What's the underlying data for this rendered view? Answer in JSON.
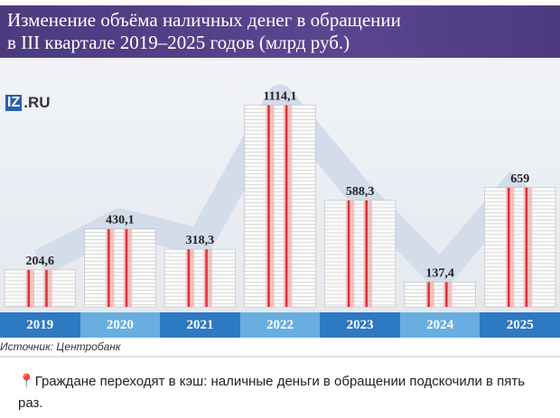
{
  "chart_data": {
    "type": "bar",
    "title": "Изменение объёма наличных денег в обращении в III квартале 2019–2025 годов (млрд руб.)",
    "title_lines": [
      "Изменение объёма наличных денег в обращении",
      "в III квартале 2019–2025 годов (млрд руб.)"
    ],
    "categories": [
      "2019",
      "2020",
      "2021",
      "2022",
      "2023",
      "2024",
      "2025"
    ],
    "values": [
      204.6,
      430.1,
      318.3,
      1114.1,
      588.3,
      137.4,
      659
    ],
    "value_labels": [
      "204,6",
      "430,1",
      "318,3",
      "1114,1",
      "588,3",
      "137,4",
      "659"
    ],
    "xlabel": "",
    "ylabel": "млрд руб.",
    "ylim": [
      0,
      1200
    ],
    "source": "Источник: Центробанк"
  },
  "logo": {
    "iz": "IZ",
    "ru": ".RU"
  },
  "caption": {
    "icon": "pin-icon",
    "text": "Граждане переходят в кэш: наличные деньги в обращении подскочили в пять раз."
  },
  "colors": {
    "title_bg": "#4b3b7e",
    "year_dark": "#2d79c2",
    "year_light": "#69aee0",
    "band": "#d9343a"
  }
}
